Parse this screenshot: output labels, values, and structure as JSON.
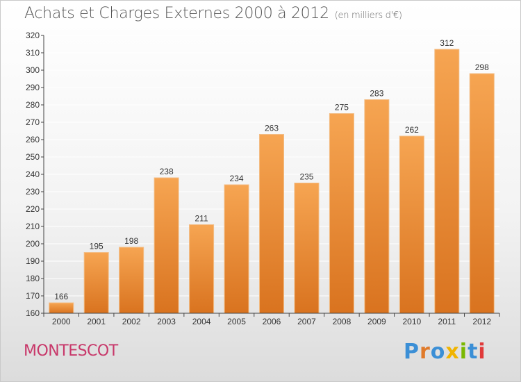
{
  "header": {
    "title": "Achats et Charges Externes 2000 à 2012",
    "subtitle": "(en milliers d'€)"
  },
  "footer": {
    "commune": "MONTESCOT",
    "logo_text": "Proxiti",
    "logo_colors": [
      "#3b8fd6",
      "#e07a2a",
      "#3b8fd6",
      "#f0b400",
      "#7ab800",
      "#3b8fd6",
      "#e03a3a"
    ]
  },
  "colors": {
    "bar_top": "#f6a552",
    "bar_bottom": "#d9731f",
    "bar_edge": "#f3bd85",
    "axis": "#444444",
    "grid": "#ffffff",
    "text": "#333333"
  },
  "chart_data": {
    "type": "bar",
    "categories": [
      "2000",
      "2001",
      "2002",
      "2003",
      "2004",
      "2005",
      "2006",
      "2007",
      "2008",
      "2009",
      "2010",
      "2011",
      "2012"
    ],
    "values": [
      166,
      195,
      198,
      238,
      211,
      234,
      263,
      235,
      275,
      283,
      262,
      312,
      298
    ],
    "ylim": [
      160,
      320
    ],
    "yticks": [
      160,
      170,
      180,
      190,
      200,
      210,
      220,
      230,
      240,
      250,
      260,
      270,
      280,
      290,
      300,
      310,
      320
    ],
    "grid": true,
    "data_labels": true
  }
}
